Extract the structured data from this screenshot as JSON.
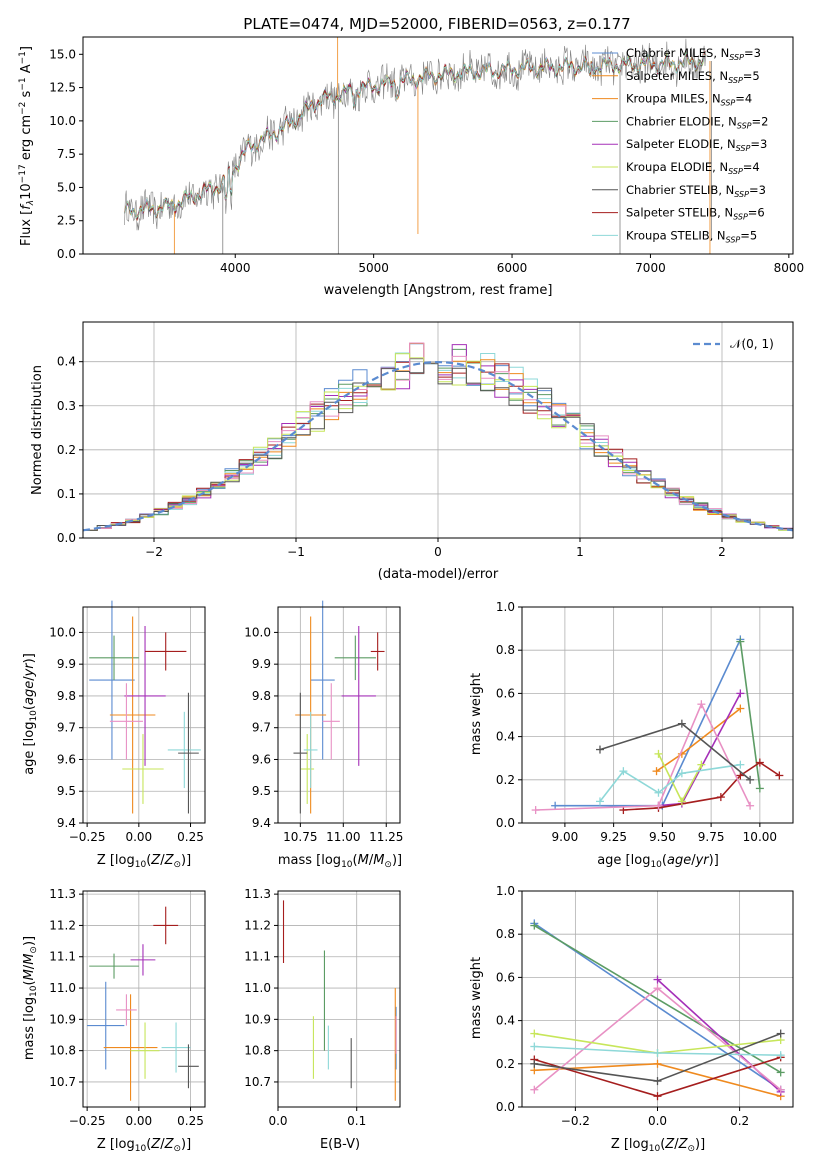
{
  "figure": {
    "title": "PLATE=0474, MJD=52000, FIBERID=0563, z=0.177"
  },
  "colors": {
    "series": [
      "#5b8bd0",
      "#5c9c64",
      "#8ed8d8",
      "#ef8a1f",
      "#a530b8",
      "#a51e1e",
      "#e891c4",
      "#c7e65a",
      "#555555"
    ],
    "data_spectrum": "#808080",
    "normal_curve": "#5b8bd0",
    "grid": "#b0b0b0"
  },
  "chart_data": [
    {
      "id": "spectrum",
      "type": "line",
      "xlabel": "wavelength [Angstrom, rest frame]",
      "ylabel": "Flux [f_λ10^-17 erg cm^-2 s^-1 A^-1]",
      "xlim": [
        2900,
        8030
      ],
      "ylim": [
        0,
        16.3
      ],
      "xticks": [
        4000,
        5000,
        6000,
        7000,
        8000
      ],
      "yticks": [
        0.0,
        2.5,
        5.0,
        7.5,
        10.0,
        12.5,
        15.0
      ],
      "grid": false,
      "legend_position": "top-right",
      "wavelength_range": [
        3200,
        7400
      ],
      "continuum": {
        "x": [
          3200,
          3500,
          3900,
          4100,
          4400,
          4600,
          4900,
          5200,
          5500,
          5900,
          6200,
          6500,
          6800,
          7100,
          7400
        ],
        "y": [
          3.2,
          3.5,
          5.2,
          8.0,
          9.8,
          11.5,
          12.4,
          13.0,
          13.5,
          13.8,
          14.0,
          14.1,
          14.2,
          14.3,
          14.5
        ]
      },
      "legend": [
        {
          "label": "Chabrier MILES, N",
          "sub": "SSP",
          "suffix": "=3"
        },
        {
          "label": "Salpeter MILES, N",
          "sub": "SSP",
          "suffix": "=5"
        },
        {
          "label": "Kroupa MILES, N",
          "sub": "SSP",
          "suffix": "=4"
        },
        {
          "label": "Chabrier ELODIE, N",
          "sub": "SSP",
          "suffix": "=2"
        },
        {
          "label": "Salpeter ELODIE, N",
          "sub": "SSP",
          "suffix": "=3"
        },
        {
          "label": "Kroupa ELODIE, N",
          "sub": "SSP",
          "suffix": "=4"
        },
        {
          "label": "Chabrier STELIB, N",
          "sub": "SSP",
          "suffix": "=3"
        },
        {
          "label": "Salpeter STELIB, N",
          "sub": "SSP",
          "suffix": "=6"
        },
        {
          "label": "Kroupa STELIB, N",
          "sub": "SSP",
          "suffix": "=5"
        }
      ],
      "legend_colors": [
        "#5b8bd0",
        "#ef8a1f",
        "#ef8a1f",
        "#5c9c64",
        "#a530b8",
        "#c7e65a",
        "#555555",
        "#a51e1e",
        "#8ed8d8"
      ]
    },
    {
      "id": "residuals",
      "type": "histogram",
      "xlabel": "(data-model)/error",
      "ylabel": "Normed distribution",
      "xlim": [
        -2.5,
        2.5
      ],
      "ylim": [
        0,
        0.49
      ],
      "xticks": [
        -2,
        -1,
        0,
        1,
        2
      ],
      "yticks": [
        0.0,
        0.1,
        0.2,
        0.3,
        0.4
      ],
      "grid": true,
      "bin_width": 0.1,
      "legend": [
        {
          "label": "𝒩(0, 1)"
        }
      ],
      "legend_position": "top-right"
    },
    {
      "id": "age_vs_Z",
      "type": "errorbar",
      "xlabel": "Z [log10(Z/Z⊙)]",
      "ylabel": "age  [log10(age/yr)]",
      "xlim": [
        -0.27,
        0.32
      ],
      "ylim": [
        9.4,
        10.08
      ],
      "xticks": [
        -0.25,
        0.0,
        0.25
      ],
      "yticks": [
        9.4,
        9.5,
        9.6,
        9.7,
        9.8,
        9.9,
        10.0
      ],
      "points": [
        {
          "x": -0.13,
          "y": 9.85,
          "xerr": 0.11,
          "yerr": 0.25,
          "color": "#5b8bd0"
        },
        {
          "x": -0.12,
          "y": 9.92,
          "xerr": 0.12,
          "yerr": 0.07,
          "color": "#5c9c64"
        },
        {
          "x": -0.03,
          "y": 9.74,
          "xerr": 0.11,
          "yerr": 0.31,
          "color": "#ef8a1f"
        },
        {
          "x": 0.03,
          "y": 9.8,
          "xerr": 0.1,
          "yerr": 0.22,
          "color": "#a530b8"
        },
        {
          "x": 0.13,
          "y": 9.94,
          "xerr": 0.1,
          "yerr": 0.06,
          "color": "#a51e1e"
        },
        {
          "x": -0.06,
          "y": 9.72,
          "xerr": 0.08,
          "yerr": 0.12,
          "color": "#e891c4"
        },
        {
          "x": 0.02,
          "y": 9.57,
          "xerr": 0.1,
          "yerr": 0.11,
          "color": "#c7e65a"
        },
        {
          "x": 0.22,
          "y": 9.63,
          "xerr": 0.08,
          "yerr": 0.12,
          "color": "#8ed8d8"
        },
        {
          "x": 0.24,
          "y": 9.62,
          "xerr": 0.05,
          "yerr": 0.19,
          "color": "#555555"
        }
      ]
    },
    {
      "id": "age_vs_mass",
      "type": "errorbar",
      "xlabel": "mass [log10(M/M⊙)]",
      "ylabel": "",
      "xlim": [
        10.62,
        11.33
      ],
      "ylim": [
        9.4,
        10.08
      ],
      "xticks": [
        10.75,
        11.0,
        11.25
      ],
      "yticks": [
        9.4,
        9.5,
        9.6,
        9.7,
        9.8,
        9.9,
        10.0
      ],
      "points": [
        {
          "x": 10.88,
          "y": 9.85,
          "xerr": 0.07,
          "yerr": 0.25,
          "color": "#5b8bd0"
        },
        {
          "x": 11.07,
          "y": 9.92,
          "xerr": 0.12,
          "yerr": 0.07,
          "color": "#5c9c64"
        },
        {
          "x": 10.81,
          "y": 9.74,
          "xerr": 0.09,
          "yerr": 0.31,
          "color": "#ef8a1f"
        },
        {
          "x": 11.09,
          "y": 9.8,
          "xerr": 0.1,
          "yerr": 0.22,
          "color": "#a530b8"
        },
        {
          "x": 11.2,
          "y": 9.94,
          "xerr": 0.04,
          "yerr": 0.06,
          "color": "#a51e1e"
        },
        {
          "x": 10.93,
          "y": 9.72,
          "xerr": 0.05,
          "yerr": 0.12,
          "color": "#e891c4"
        },
        {
          "x": 10.79,
          "y": 9.57,
          "xerr": 0.04,
          "yerr": 0.11,
          "color": "#c7e65a"
        },
        {
          "x": 10.81,
          "y": 9.63,
          "xerr": 0.04,
          "yerr": 0.12,
          "color": "#8ed8d8"
        },
        {
          "x": 10.75,
          "y": 9.62,
          "xerr": 0.04,
          "yerr": 0.19,
          "color": "#555555"
        }
      ]
    },
    {
      "id": "weight_vs_age",
      "type": "line",
      "xlabel": "age  [log10(age/yr)]",
      "ylabel": "mass weight",
      "xlim": [
        8.78,
        10.17
      ],
      "ylim": [
        0,
        1.0
      ],
      "xticks": [
        9.0,
        9.25,
        9.5,
        9.75,
        10.0
      ],
      "yticks": [
        0.0,
        0.2,
        0.4,
        0.6,
        0.8,
        1.0
      ],
      "grid": true,
      "series": [
        {
          "color": "#5b8bd0",
          "x": [
            8.95,
            9.5,
            9.9
          ],
          "y": [
            0.08,
            0.08,
            0.85
          ]
        },
        {
          "color": "#5c9c64",
          "x": [
            9.9,
            10.0
          ],
          "y": [
            0.84,
            0.16
          ]
        },
        {
          "color": "#ef8a1f",
          "x": [
            9.47,
            9.6,
            9.9
          ],
          "y": [
            0.24,
            0.32,
            0.53
          ]
        },
        {
          "color": "#a530b8",
          "x": [
            9.48,
            9.6,
            9.9
          ],
          "y": [
            0.08,
            0.09,
            0.6
          ]
        },
        {
          "color": "#a51e1e",
          "x": [
            9.3,
            9.48,
            9.8,
            9.9,
            10.0,
            10.1
          ],
          "y": [
            0.06,
            0.07,
            0.12,
            0.22,
            0.28,
            0.22
          ]
        },
        {
          "color": "#e891c4",
          "x": [
            8.85,
            9.48,
            9.7,
            9.95
          ],
          "y": [
            0.06,
            0.08,
            0.55,
            0.08
          ]
        },
        {
          "color": "#c7e65a",
          "x": [
            9.48,
            9.6,
            9.7
          ],
          "y": [
            0.32,
            0.1,
            0.27
          ]
        },
        {
          "color": "#8ed8d8",
          "x": [
            9.18,
            9.3,
            9.48,
            9.6,
            9.9
          ],
          "y": [
            0.1,
            0.24,
            0.14,
            0.23,
            0.27
          ]
        },
        {
          "color": "#555555",
          "x": [
            9.18,
            9.6,
            9.95
          ],
          "y": [
            0.34,
            0.46,
            0.2
          ]
        }
      ]
    },
    {
      "id": "mass_vs_Z",
      "type": "errorbar",
      "xlabel": "Z [log10(Z/Z⊙)]",
      "ylabel": "mass [log10(M/M⊙)]",
      "xlim": [
        -0.27,
        0.32
      ],
      "ylim": [
        10.62,
        11.31
      ],
      "xticks": [
        -0.25,
        0.0,
        0.25
      ],
      "yticks": [
        10.7,
        10.8,
        10.9,
        11.0,
        11.1,
        11.2,
        11.3
      ],
      "points": [
        {
          "x": -0.16,
          "y": 10.88,
          "xerr": 0.09,
          "yerr": 0.14,
          "color": "#5b8bd0"
        },
        {
          "x": -0.12,
          "y": 11.07,
          "xerr": 0.12,
          "yerr": 0.04,
          "color": "#5c9c64"
        },
        {
          "x": -0.04,
          "y": 10.81,
          "xerr": 0.13,
          "yerr": 0.17,
          "color": "#ef8a1f"
        },
        {
          "x": 0.02,
          "y": 11.09,
          "xerr": 0.06,
          "yerr": 0.05,
          "color": "#a530b8"
        },
        {
          "x": 0.13,
          "y": 11.2,
          "xerr": 0.06,
          "yerr": 0.06,
          "color": "#a51e1e"
        },
        {
          "x": -0.06,
          "y": 10.93,
          "xerr": 0.05,
          "yerr": 0.05,
          "color": "#e891c4"
        },
        {
          "x": 0.03,
          "y": 10.8,
          "xerr": 0.07,
          "yerr": 0.09,
          "color": "#c7e65a"
        },
        {
          "x": 0.18,
          "y": 10.81,
          "xerr": 0.07,
          "yerr": 0.08,
          "color": "#8ed8d8"
        },
        {
          "x": 0.24,
          "y": 10.75,
          "xerr": 0.05,
          "yerr": 0.07,
          "color": "#555555"
        }
      ]
    },
    {
      "id": "mass_vs_EBV",
      "type": "errorbar",
      "xlabel": "E(B-V)",
      "ylabel": "",
      "xlim": [
        0.0,
        0.155
      ],
      "ylim": [
        10.62,
        11.31
      ],
      "xticks": [
        0.0,
        0.1
      ],
      "yticks": [
        10.7,
        10.8,
        10.9,
        11.0,
        11.1,
        11.2,
        11.3
      ],
      "points": [
        {
          "x": 0.15,
          "y": 10.84,
          "xerr": 0,
          "yerr": 0.1,
          "color": "#5b8bd0"
        },
        {
          "x": 0.059,
          "y": 10.96,
          "xerr": 0,
          "yerr": 0.16,
          "color": "#5c9c64"
        },
        {
          "x": 0.149,
          "y": 10.82,
          "xerr": 0,
          "yerr": 0.18,
          "color": "#ef8a1f"
        },
        {
          "x": 0.007,
          "y": 11.18,
          "xerr": 0,
          "yerr": 0.1,
          "color": "#a51e1e"
        },
        {
          "x": 0.15,
          "y": 10.85,
          "xerr": 0,
          "yerr": 0.06,
          "color": "#e891c4"
        },
        {
          "x": 0.045,
          "y": 10.81,
          "xerr": 0,
          "yerr": 0.1,
          "color": "#c7e65a"
        },
        {
          "x": 0.064,
          "y": 10.81,
          "xerr": 0,
          "yerr": 0.07,
          "color": "#8ed8d8"
        },
        {
          "x": 0.093,
          "y": 10.76,
          "xerr": 0,
          "yerr": 0.08,
          "color": "#555555"
        }
      ]
    },
    {
      "id": "weight_vs_Z",
      "type": "line",
      "xlabel": "Z [log10(Z/Z⊙)]",
      "ylabel": "mass weight",
      "xlim": [
        -0.33,
        0.33
      ],
      "ylim": [
        0,
        1.0
      ],
      "xticks": [
        -0.2,
        0.0,
        0.2
      ],
      "yticks": [
        0.0,
        0.2,
        0.4,
        0.6,
        0.8,
        1.0
      ],
      "grid": true,
      "series": [
        {
          "color": "#5b8bd0",
          "x": [
            -0.3,
            0.3
          ],
          "y": [
            0.85,
            0.08
          ]
        },
        {
          "color": "#5c9c64",
          "x": [
            -0.3,
            0.3
          ],
          "y": [
            0.84,
            0.16
          ]
        },
        {
          "color": "#ef8a1f",
          "x": [
            -0.3,
            0.0,
            0.3
          ],
          "y": [
            0.17,
            0.2,
            0.05
          ]
        },
        {
          "color": "#a530b8",
          "x": [
            0.0,
            0.3
          ],
          "y": [
            0.59,
            0.07
          ]
        },
        {
          "color": "#a51e1e",
          "x": [
            -0.3,
            0.0,
            0.3
          ],
          "y": [
            0.22,
            0.05,
            0.23
          ]
        },
        {
          "color": "#e891c4",
          "x": [
            -0.3,
            0.0,
            0.3
          ],
          "y": [
            0.08,
            0.55,
            0.08
          ]
        },
        {
          "color": "#c7e65a",
          "x": [
            -0.3,
            0.0,
            0.3
          ],
          "y": [
            0.34,
            0.25,
            0.31
          ]
        },
        {
          "color": "#8ed8d8",
          "x": [
            -0.3,
            0.0,
            0.3
          ],
          "y": [
            0.28,
            0.25,
            0.24
          ]
        },
        {
          "color": "#555555",
          "x": [
            -0.3,
            0.0,
            0.3
          ],
          "y": [
            0.2,
            0.12,
            0.34
          ]
        }
      ]
    }
  ]
}
